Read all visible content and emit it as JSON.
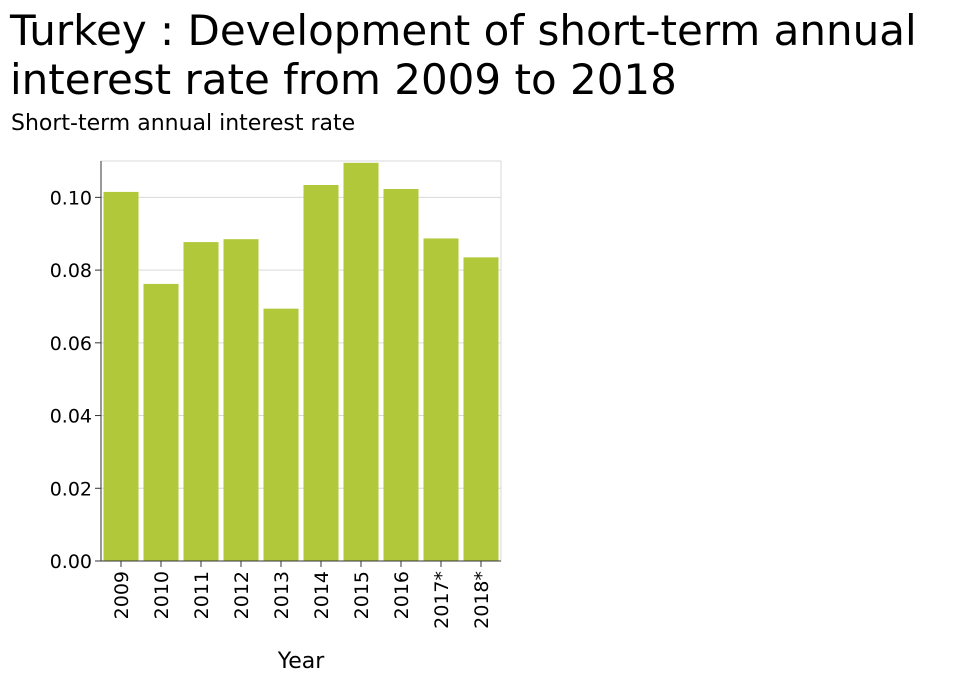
{
  "chart_data": {
    "type": "bar",
    "title": "Turkey : Development of short-term annual interest rate from 2009 to 2018",
    "ylabel": "Short-term annual interest rate",
    "xlabel": "Year",
    "categories": [
      "2009",
      "2010",
      "2011",
      "2012",
      "2013",
      "2014",
      "2015",
      "2016",
      "2017*",
      "2018*"
    ],
    "values": [
      0.1015,
      0.0762,
      0.0877,
      0.0885,
      0.0694,
      0.1034,
      0.1095,
      0.1023,
      0.0887,
      0.0835
    ],
    "ylim": [
      0,
      0.11
    ],
    "yticks": [
      "0.00",
      "0.02",
      "0.04",
      "0.06",
      "0.08",
      "0.10"
    ],
    "bar_color": "#b0c83a",
    "grid": true
  }
}
